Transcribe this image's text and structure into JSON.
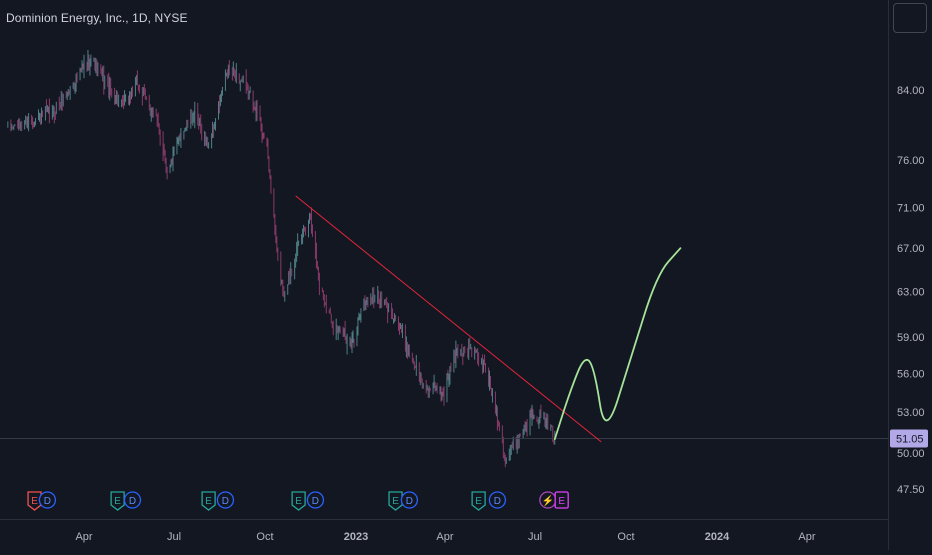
{
  "header": {
    "title": "Dominion Energy, Inc., 1D, NYSE"
  },
  "colors": {
    "background": "#131722",
    "candle_up": "#4f7f86",
    "candle_down": "#8a3a6a",
    "trendline": "#e5243b",
    "projection": "#a5e39a",
    "axis_text": "#b2b5be",
    "price_badge": "#b2a8e8"
  },
  "chart_data": {
    "type": "candlestick",
    "y_scale": "log",
    "y_ticks": [
      "84.00",
      "76.00",
      "71.00",
      "67.00",
      "63.00",
      "59.00",
      "56.00",
      "53.00",
      "50.00",
      "47.50"
    ],
    "x_ticks": [
      "Apr",
      "Jul",
      "Oct",
      "2023",
      "Apr",
      "Jul",
      "Oct",
      "2024",
      "Apr"
    ],
    "last_price": "51.05",
    "price_path": [
      {
        "date": "2022-01-14",
        "close": 79.5
      },
      {
        "date": "2022-02-05",
        "close": 80.3
      },
      {
        "date": "2022-03-01",
        "close": 81.5
      },
      {
        "date": "2022-03-18",
        "close": 84.0
      },
      {
        "date": "2022-04-08",
        "close": 88.0
      },
      {
        "date": "2022-04-25",
        "close": 84.5
      },
      {
        "date": "2022-05-10",
        "close": 82.0
      },
      {
        "date": "2022-05-25",
        "close": 84.8
      },
      {
        "date": "2022-06-15",
        "close": 80.0
      },
      {
        "date": "2022-06-25",
        "close": 74.5
      },
      {
        "date": "2022-07-08",
        "close": 79.0
      },
      {
        "date": "2022-07-22",
        "close": 81.0
      },
      {
        "date": "2022-08-05",
        "close": 77.5
      },
      {
        "date": "2022-08-25",
        "close": 86.5
      },
      {
        "date": "2022-09-08",
        "close": 85.0
      },
      {
        "date": "2022-09-22",
        "close": 82.0
      },
      {
        "date": "2022-10-03",
        "close": 77.0
      },
      {
        "date": "2022-10-14",
        "close": 65.5
      },
      {
        "date": "2022-10-20",
        "close": 62.8
      },
      {
        "date": "2022-11-10",
        "close": 69.0
      },
      {
        "date": "2022-11-16",
        "close": 70.5
      },
      {
        "date": "2022-11-25",
        "close": 63.5
      },
      {
        "date": "2022-12-10",
        "close": 59.8
      },
      {
        "date": "2022-12-30",
        "close": 58.4
      },
      {
        "date": "2023-01-06",
        "close": 61.6
      },
      {
        "date": "2023-01-20",
        "close": 62.6
      },
      {
        "date": "2023-02-08",
        "close": 61.0
      },
      {
        "date": "2023-02-20",
        "close": 58.5
      },
      {
        "date": "2023-03-10",
        "close": 55.0
      },
      {
        "date": "2023-03-31",
        "close": 54.5
      },
      {
        "date": "2023-04-12",
        "close": 57.8
      },
      {
        "date": "2023-04-28",
        "close": 58.0
      },
      {
        "date": "2023-05-12",
        "close": 56.5
      },
      {
        "date": "2023-05-25",
        "close": 52.5
      },
      {
        "date": "2023-06-01",
        "close": 49.5
      },
      {
        "date": "2023-06-14",
        "close": 51.0
      },
      {
        "date": "2023-06-28",
        "close": 53.0
      },
      {
        "date": "2023-07-10",
        "close": 52.5
      },
      {
        "date": "2023-07-21",
        "close": 51.05
      }
    ],
    "trendline": [
      {
        "date": "2022-11-01",
        "price": 72.2
      },
      {
        "date": "2023-09-06",
        "price": 50.8
      }
    ],
    "projection": [
      {
        "date": "2023-07-21",
        "price": 51.0
      },
      {
        "date": "2023-08-05",
        "price": 54.5
      },
      {
        "date": "2023-08-20",
        "price": 57.5
      },
      {
        "date": "2023-08-30",
        "price": 56.5
      },
      {
        "date": "2023-09-10",
        "price": 51.0
      },
      {
        "date": "2023-10-05",
        "price": 57.0
      },
      {
        "date": "2023-11-01",
        "price": 64.5
      },
      {
        "date": "2023-11-25",
        "price": 67.0
      }
    ],
    "event_markers": [
      {
        "date": "2022-02-10",
        "label": "E",
        "kind": "earnings-warn"
      },
      {
        "date": "2022-02-23",
        "label": "D",
        "kind": "dividend"
      },
      {
        "date": "2022-05-05",
        "label": "E",
        "kind": "earnings"
      },
      {
        "date": "2022-05-20",
        "label": "D",
        "kind": "dividend"
      },
      {
        "date": "2022-08-05",
        "label": "E",
        "kind": "earnings"
      },
      {
        "date": "2022-08-22",
        "label": "D",
        "kind": "dividend"
      },
      {
        "date": "2022-11-04",
        "label": "E",
        "kind": "earnings"
      },
      {
        "date": "2022-11-21",
        "label": "D",
        "kind": "dividend"
      },
      {
        "date": "2023-02-10",
        "label": "E",
        "kind": "earnings"
      },
      {
        "date": "2023-02-24",
        "label": "D",
        "kind": "dividend"
      },
      {
        "date": "2023-05-05",
        "label": "E",
        "kind": "earnings"
      },
      {
        "date": "2023-05-24",
        "label": "D",
        "kind": "dividend"
      },
      {
        "date": "2023-07-14",
        "label": "⚡",
        "kind": "split"
      },
      {
        "date": "2023-07-28",
        "label": "E",
        "kind": "earnings-upcoming"
      }
    ]
  }
}
